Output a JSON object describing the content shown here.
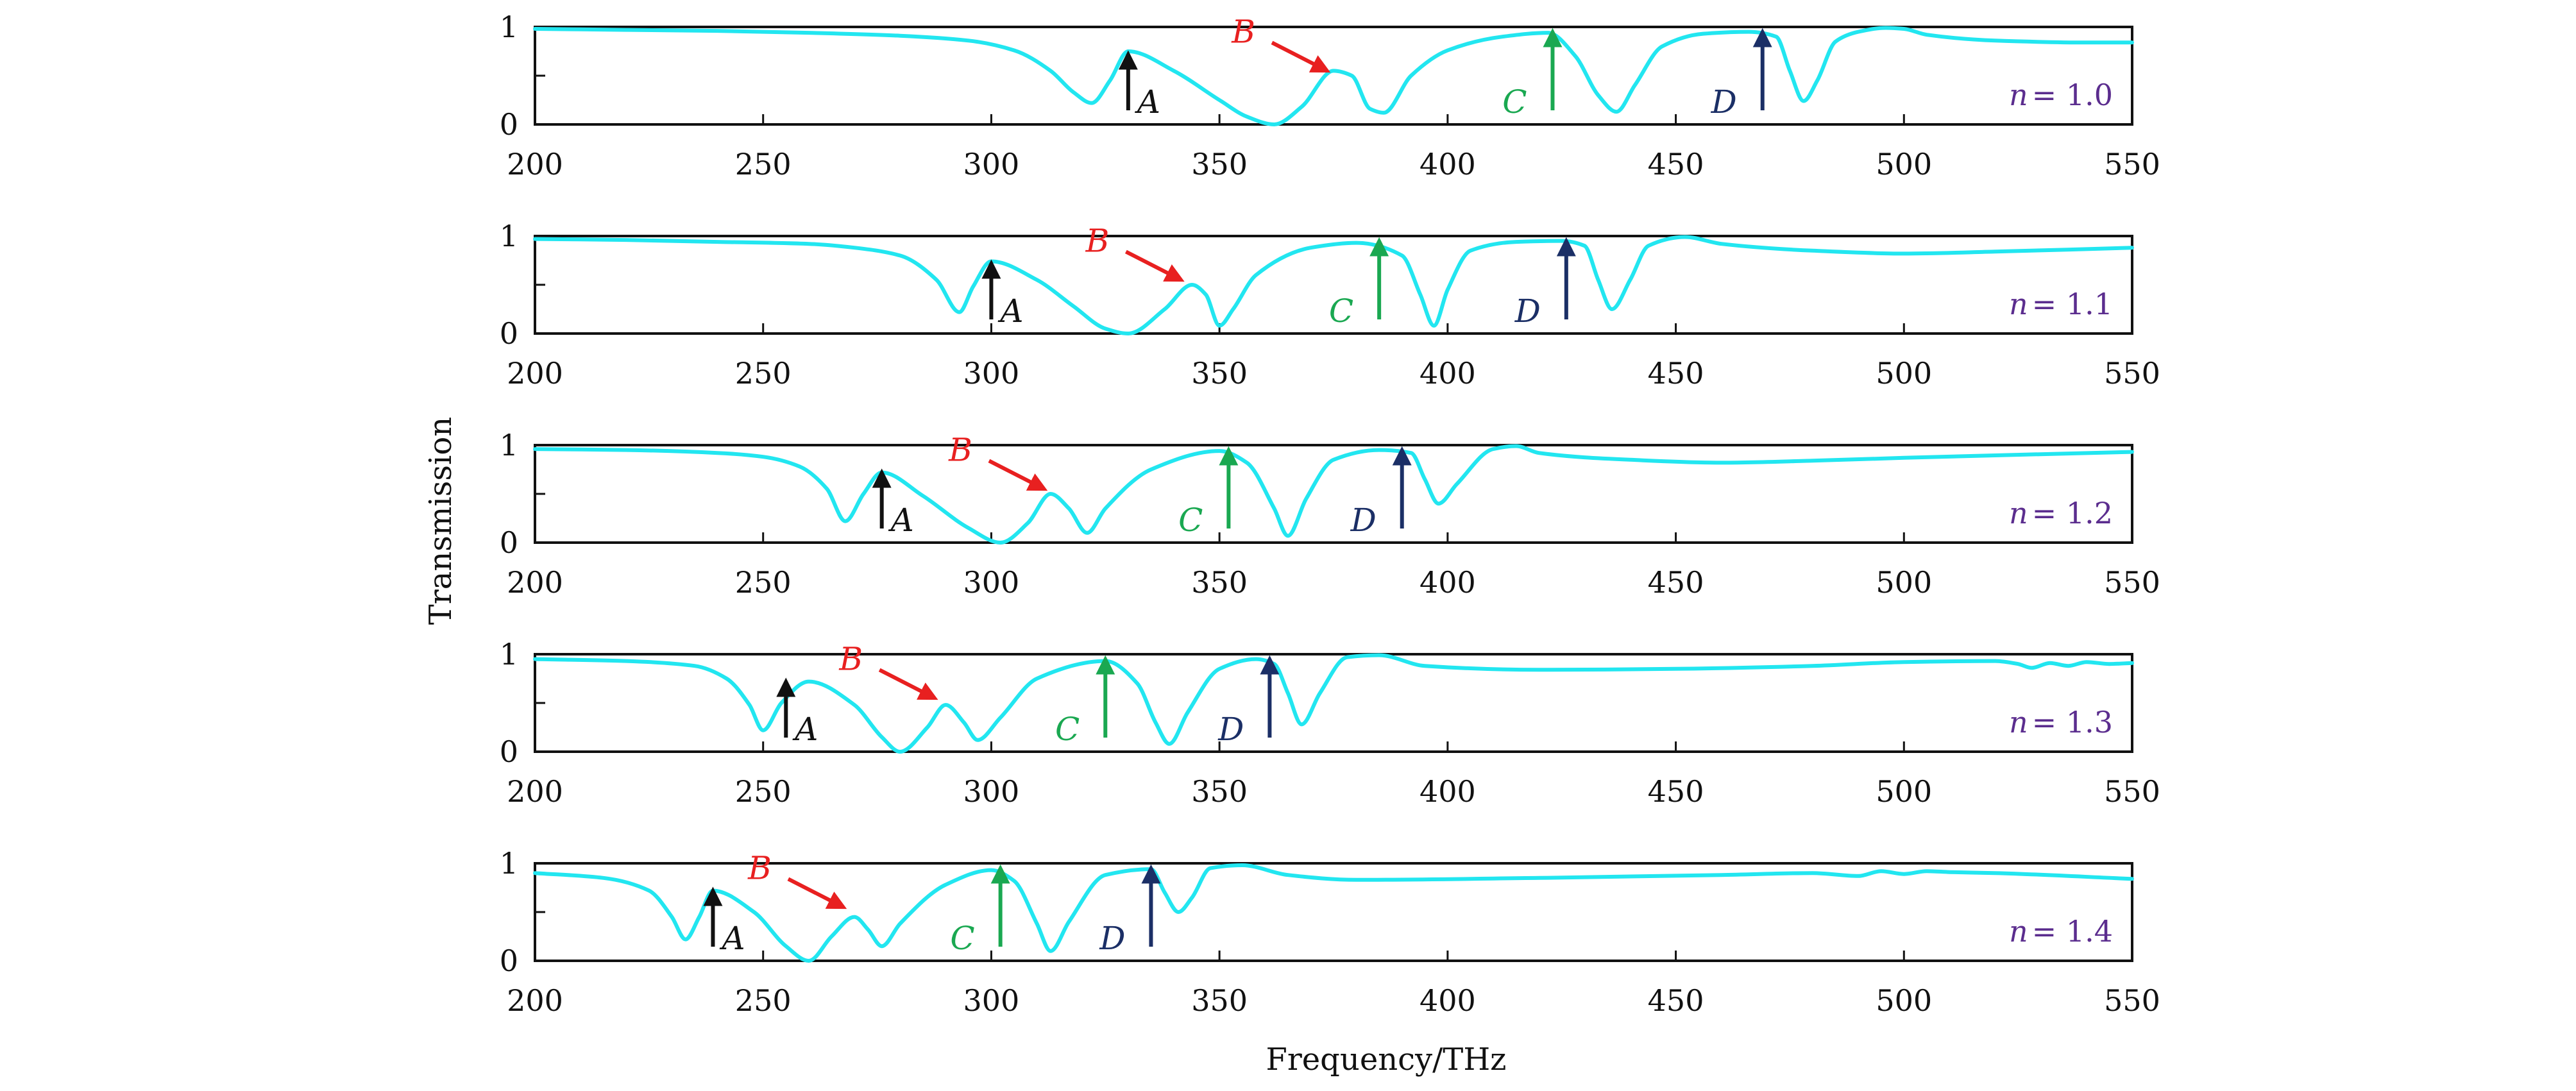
{
  "chart_data": {
    "type": "line",
    "xlabel": "Frequency/THz",
    "ylabel": "Transmission",
    "xlim": [
      200,
      550
    ],
    "ylim": [
      0,
      1
    ],
    "xticks": [
      200,
      250,
      300,
      350,
      400,
      450,
      500,
      550
    ],
    "yticks": [
      0,
      1
    ],
    "grid": false,
    "line_color": "#22e6f0",
    "marker_colors": {
      "A": "#111111",
      "B": "#e82020",
      "C": "#1aa851",
      "D": "#1b2f66"
    },
    "panel_label_color": "#5b2d8e",
    "panels": [
      {
        "label_var": "n",
        "label_value": "= 1.0",
        "x": [
          200,
          220,
          240,
          260,
          280,
          295,
          305,
          313,
          318,
          322,
          326,
          330,
          340,
          350,
          356,
          362,
          368,
          375,
          379,
          383,
          386,
          392,
          400,
          412,
          422,
          428,
          433,
          437,
          441,
          447,
          456,
          466,
          472,
          475,
          478,
          481,
          485,
          490,
          496,
          500,
          505,
          520,
          540,
          550
        ],
        "y": [
          0.98,
          0.97,
          0.96,
          0.94,
          0.91,
          0.86,
          0.76,
          0.55,
          0.33,
          0.22,
          0.45,
          0.75,
          0.55,
          0.25,
          0.08,
          0.0,
          0.18,
          0.55,
          0.5,
          0.16,
          0.12,
          0.5,
          0.76,
          0.9,
          0.94,
          0.7,
          0.3,
          0.13,
          0.4,
          0.8,
          0.93,
          0.95,
          0.9,
          0.55,
          0.24,
          0.45,
          0.85,
          0.95,
          0.99,
          0.98,
          0.92,
          0.86,
          0.84,
          0.84
        ],
        "markers": [
          {
            "name": "A",
            "x": 330,
            "label": "A"
          },
          {
            "name": "B",
            "x": 375,
            "label": "B"
          },
          {
            "name": "C",
            "x": 423,
            "label": "C"
          },
          {
            "name": "D",
            "x": 469,
            "label": "D"
          }
        ]
      },
      {
        "label_var": "n",
        "label_value": "= 1.1",
        "x": [
          200,
          220,
          240,
          260,
          270,
          280,
          288,
          293,
          296,
          300,
          310,
          318,
          325,
          330,
          338,
          344,
          347,
          350,
          353,
          358,
          370,
          380,
          390,
          394,
          397,
          400,
          405,
          415,
          425,
          430,
          433,
          436,
          440,
          444,
          452,
          460,
          480,
          500,
          520,
          550
        ],
        "y": [
          0.97,
          0.96,
          0.94,
          0.92,
          0.88,
          0.8,
          0.55,
          0.22,
          0.48,
          0.74,
          0.55,
          0.28,
          0.05,
          0.0,
          0.25,
          0.5,
          0.4,
          0.08,
          0.25,
          0.6,
          0.88,
          0.93,
          0.8,
          0.4,
          0.08,
          0.45,
          0.85,
          0.94,
          0.95,
          0.9,
          0.55,
          0.25,
          0.55,
          0.9,
          0.99,
          0.92,
          0.85,
          0.82,
          0.84,
          0.88
        ],
        "markers": [
          {
            "name": "A",
            "x": 300,
            "label": "A"
          },
          {
            "name": "B",
            "x": 343,
            "label": "B"
          },
          {
            "name": "C",
            "x": 385,
            "label": "C"
          },
          {
            "name": "D",
            "x": 426,
            "label": "D"
          }
        ]
      },
      {
        "label_var": "n",
        "label_value": "= 1.2",
        "x": [
          200,
          220,
          240,
          250,
          258,
          264,
          268,
          272,
          276,
          285,
          295,
          302,
          308,
          313,
          317,
          321,
          325,
          335,
          350,
          356,
          362,
          365,
          369,
          375,
          385,
          392,
          395,
          398,
          402,
          410,
          415,
          420,
          440,
          460,
          480,
          500,
          550
        ],
        "y": [
          0.96,
          0.95,
          0.92,
          0.88,
          0.78,
          0.55,
          0.22,
          0.5,
          0.72,
          0.48,
          0.15,
          0.0,
          0.2,
          0.5,
          0.35,
          0.1,
          0.35,
          0.75,
          0.94,
          0.82,
          0.35,
          0.07,
          0.45,
          0.85,
          0.95,
          0.92,
          0.65,
          0.4,
          0.6,
          0.96,
          0.99,
          0.92,
          0.85,
          0.82,
          0.84,
          0.87,
          0.93
        ],
        "markers": [
          {
            "name": "A",
            "x": 276,
            "label": "A"
          },
          {
            "name": "B",
            "x": 313,
            "label": "B"
          },
          {
            "name": "C",
            "x": 352,
            "label": "C"
          },
          {
            "name": "D",
            "x": 390,
            "label": "D"
          }
        ]
      },
      {
        "label_var": "n",
        "label_value": "= 1.3",
        "x": [
          200,
          220,
          235,
          242,
          247,
          250,
          254,
          260,
          270,
          276,
          280,
          286,
          290,
          294,
          297,
          302,
          310,
          325,
          332,
          336,
          339,
          343,
          350,
          358,
          362,
          365,
          368,
          372,
          378,
          385,
          395,
          420,
          450,
          480,
          500,
          520,
          525,
          528,
          532,
          536,
          540,
          545,
          550
        ],
        "y": [
          0.95,
          0.93,
          0.88,
          0.75,
          0.48,
          0.22,
          0.5,
          0.72,
          0.48,
          0.15,
          0.0,
          0.25,
          0.48,
          0.3,
          0.12,
          0.35,
          0.75,
          0.93,
          0.7,
          0.3,
          0.08,
          0.4,
          0.85,
          0.95,
          0.9,
          0.6,
          0.28,
          0.6,
          0.97,
          0.99,
          0.88,
          0.84,
          0.85,
          0.88,
          0.92,
          0.93,
          0.9,
          0.86,
          0.91,
          0.88,
          0.92,
          0.9,
          0.91
        ],
        "markers": [
          {
            "name": "A",
            "x": 255,
            "label": "A"
          },
          {
            "name": "B",
            "x": 289,
            "label": "B"
          },
          {
            "name": "C",
            "x": 325,
            "label": "C"
          },
          {
            "name": "D",
            "x": 361,
            "label": "D"
          }
        ]
      },
      {
        "label_var": "n",
        "label_value": "= 1.4",
        "x": [
          200,
          215,
          225,
          230,
          233,
          236,
          239,
          248,
          255,
          260,
          265,
          270,
          273,
          276,
          280,
          290,
          300,
          305,
          310,
          313,
          317,
          325,
          335,
          338,
          341,
          344,
          348,
          355,
          365,
          380,
          420,
          460,
          480,
          490,
          495,
          500,
          505,
          510,
          520,
          550
        ],
        "y": [
          0.9,
          0.85,
          0.72,
          0.45,
          0.22,
          0.45,
          0.72,
          0.5,
          0.15,
          0.0,
          0.25,
          0.45,
          0.32,
          0.15,
          0.38,
          0.78,
          0.93,
          0.82,
          0.38,
          0.1,
          0.4,
          0.88,
          0.94,
          0.7,
          0.5,
          0.65,
          0.95,
          0.98,
          0.88,
          0.83,
          0.85,
          0.88,
          0.9,
          0.87,
          0.92,
          0.89,
          0.92,
          0.91,
          0.9,
          0.84
        ],
        "markers": [
          {
            "name": "A",
            "x": 239,
            "label": "A"
          },
          {
            "name": "B",
            "x": 269,
            "label": "B"
          },
          {
            "name": "C",
            "x": 302,
            "label": "C"
          },
          {
            "name": "D",
            "x": 335,
            "label": "D"
          }
        ]
      }
    ]
  }
}
